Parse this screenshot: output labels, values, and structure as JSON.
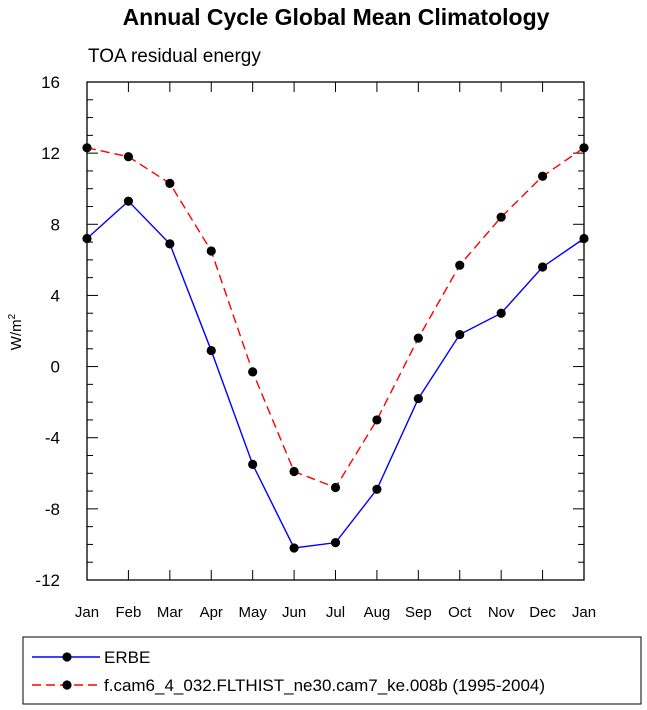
{
  "chart_data": {
    "type": "line",
    "title": "Annual Cycle Global Mean Climatology",
    "subtitle": "TOA residual energy",
    "xlabel": "",
    "ylabel": "W/m",
    "ylabel_superscript": "2",
    "categories": [
      "Jan",
      "Feb",
      "Mar",
      "Apr",
      "May",
      "Jun",
      "Jul",
      "Aug",
      "Sep",
      "Oct",
      "Nov",
      "Dec",
      "Jan"
    ],
    "ylim": [
      -12,
      16
    ],
    "yticks": [
      -12,
      -8,
      -4,
      0,
      4,
      8,
      12,
      16
    ],
    "ytick_labels": [
      "-12",
      "-8",
      "-4",
      "0",
      "4",
      "8",
      "12",
      "16"
    ],
    "yminor_step": 1,
    "grid": false,
    "legend_position": "bottom",
    "series": [
      {
        "name": "ERBE",
        "color": "#0000ff",
        "dash": "solid",
        "marker_color": "#000000",
        "values": [
          7.2,
          9.3,
          6.9,
          0.9,
          -5.5,
          -10.2,
          -9.9,
          -6.9,
          -1.8,
          1.8,
          3.0,
          5.6,
          7.2
        ]
      },
      {
        "name": "f.cam6_4_032.FLTHIST_ne30.cam7_ke.008b (1995-2004)",
        "color": "#ff0000",
        "dash": "dashed",
        "marker_color": "#000000",
        "values": [
          12.3,
          11.8,
          10.3,
          6.5,
          -0.3,
          -5.9,
          -6.8,
          -3.0,
          1.6,
          5.7,
          8.4,
          10.7,
          12.3
        ]
      }
    ]
  }
}
